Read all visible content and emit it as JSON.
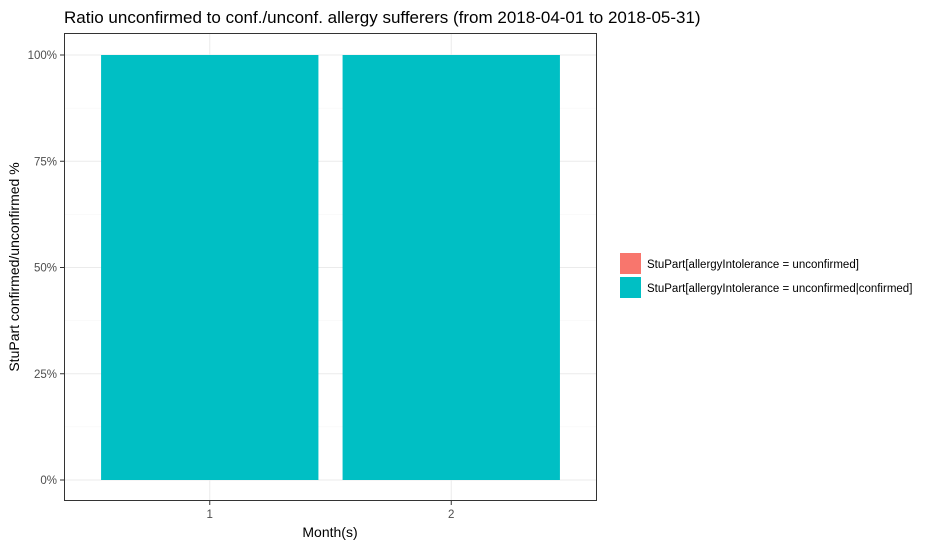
{
  "chart_data": {
    "type": "bar",
    "stacked": true,
    "title": "Ratio unconfirmed to conf./unconf. allergy sufferers (from 2018-04-01 to 2018-05-31)",
    "xlabel": "Month(s)",
    "ylabel": "StuPart confirmed/unconfirmed %",
    "categories": [
      "1",
      "2"
    ],
    "ylim": [
      0,
      1
    ],
    "yticks": [
      0,
      0.25,
      0.5,
      0.75,
      1
    ],
    "ytick_labels": [
      "0%",
      "25%",
      "50%",
      "75%",
      "100%"
    ],
    "grid": true,
    "legend_position": "right",
    "series": [
      {
        "name": "StuPart[allergyIntolerance = unconfirmed]",
        "color": "#F8766D",
        "values": [
          0,
          0
        ]
      },
      {
        "name": "StuPart[allergyIntolerance = unconfirmed|confirmed]",
        "color": "#00BFC4",
        "values": [
          1,
          1
        ]
      }
    ]
  }
}
